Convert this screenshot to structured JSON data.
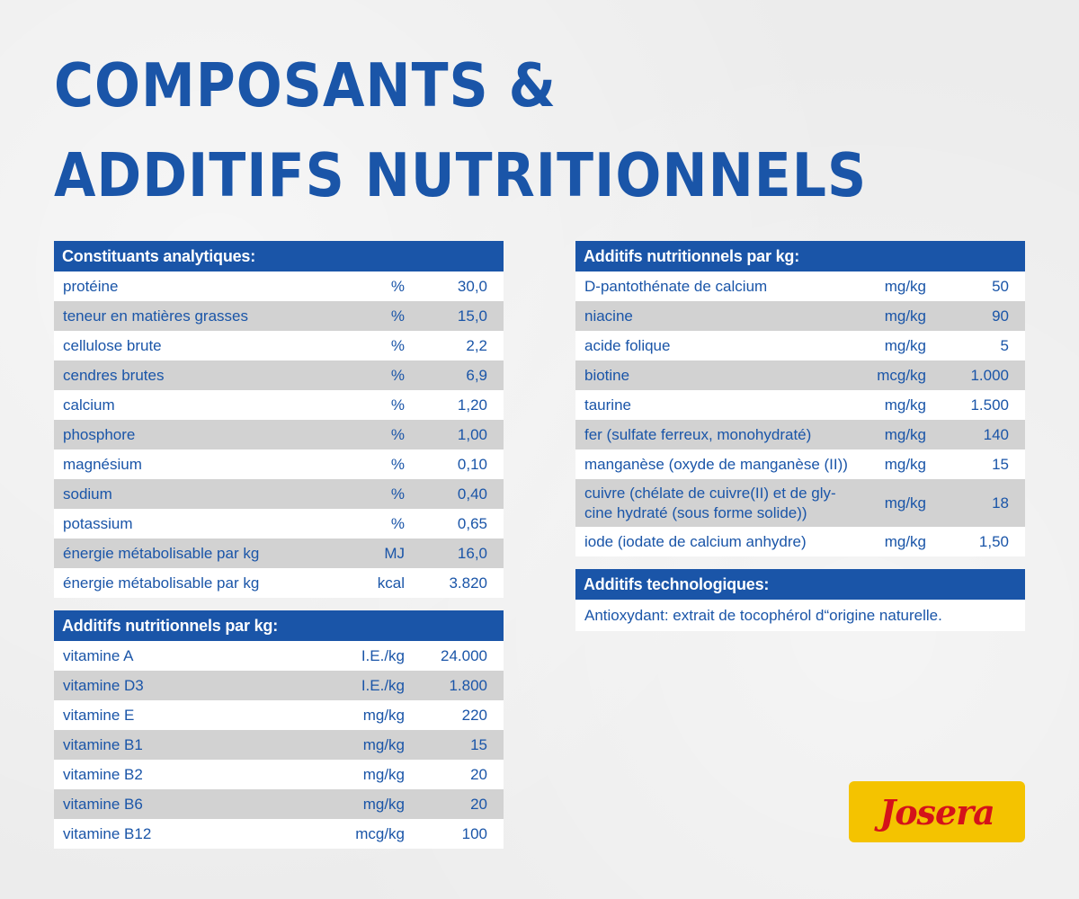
{
  "title": {
    "line1": "COMPOSANTS &",
    "line2": "ADDITIFS NUTRITIONNELS"
  },
  "analytical": {
    "header": "Constituants analytiques:",
    "rows": [
      {
        "name": "protéine",
        "unit": "%",
        "value": "30,0"
      },
      {
        "name": "teneur en matières grasses",
        "unit": "%",
        "value": "15,0"
      },
      {
        "name": "cellulose brute",
        "unit": "%",
        "value": "2,2"
      },
      {
        "name": "cendres brutes",
        "unit": "%",
        "value": "6,9"
      },
      {
        "name": "calcium",
        "unit": "%",
        "value": "1,20"
      },
      {
        "name": "phosphore",
        "unit": "%",
        "value": "1,00"
      },
      {
        "name": "magnésium",
        "unit": "%",
        "value": "0,10"
      },
      {
        "name": "sodium",
        "unit": "%",
        "value": "0,40"
      },
      {
        "name": "potassium",
        "unit": "%",
        "value": "0,65"
      },
      {
        "name": "énergie métabolisable par kg",
        "unit": "MJ",
        "value": "16,0"
      },
      {
        "name": "énergie métabolisable par kg",
        "unit": "kcal",
        "value": "3.820"
      }
    ]
  },
  "vitamins": {
    "header": "Additifs nutritionnels par kg:",
    "rows": [
      {
        "name": "vitamine A",
        "unit": "I.E./kg",
        "value": "24.000"
      },
      {
        "name": "vitamine D3",
        "unit": "I.E./kg",
        "value": "1.800"
      },
      {
        "name": "vitamine E",
        "unit": "mg/kg",
        "value": "220"
      },
      {
        "name": "vitamine B1",
        "unit": "mg/kg",
        "value": "15"
      },
      {
        "name": "vitamine B2",
        "unit": "mg/kg",
        "value": "20"
      },
      {
        "name": "vitamine B6",
        "unit": "mg/kg",
        "value": "20"
      },
      {
        "name": "vitamine B12",
        "unit": "mcg/kg",
        "value": "100"
      }
    ]
  },
  "additives": {
    "header": "Additifs nutritionnels par kg:",
    "rows": [
      {
        "name": "D-pantothénate de calcium",
        "unit": "mg/kg",
        "value": "50"
      },
      {
        "name": "niacine",
        "unit": "mg/kg",
        "value": "90"
      },
      {
        "name": "acide folique",
        "unit": "mg/kg",
        "value": "5"
      },
      {
        "name": "biotine",
        "unit": "mcg/kg",
        "value": "1.000"
      },
      {
        "name": "taurine",
        "unit": "mg/kg",
        "value": "1.500"
      },
      {
        "name": "fer (sulfate ferreux, monohydraté)",
        "unit": "mg/kg",
        "value": "140"
      },
      {
        "name": "manganèse (oxyde de manganèse (II))",
        "unit": "mg/kg",
        "value": "15"
      },
      {
        "name": "cuivre (chélate de cuivre(II) et de gly-cine hydraté (sous forme solide))",
        "unit": "mg/kg",
        "value": "18"
      },
      {
        "name": "iode (iodate de calcium anhydre)",
        "unit": "mg/kg",
        "value": "1,50"
      }
    ]
  },
  "technological": {
    "header": "Additifs technologiques:",
    "text": "Antioxydant: extrait de tocophérol d“origine naturelle."
  },
  "logo": {
    "text": "Josera"
  },
  "colors": {
    "brand_blue": "#1a55a8",
    "row_alt": "#d2d2d2",
    "logo_yellow": "#f4c300",
    "logo_red": "#d4121a"
  }
}
